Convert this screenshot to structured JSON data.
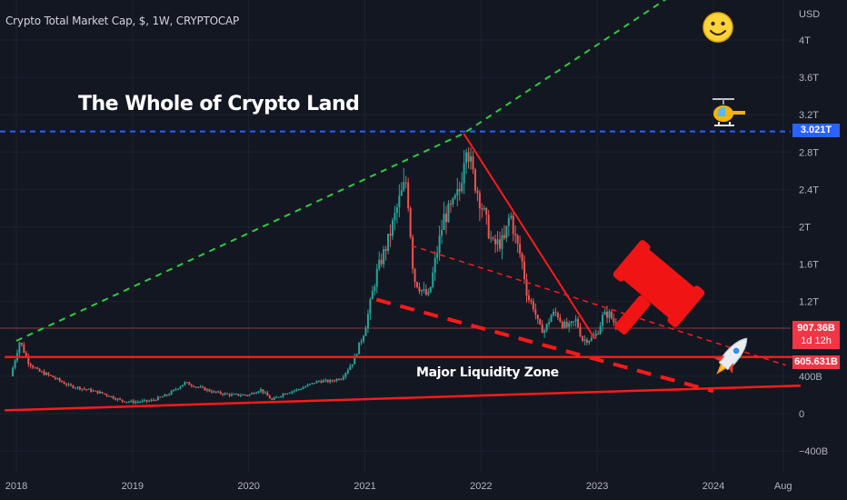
{
  "header": {
    "title": "Crypto Total Market Cap, $, 1W, CRYPTOCAP"
  },
  "annotations": {
    "headline": "The Whole of Crypto Land",
    "zone_label": "Major Liquidity Zone"
  },
  "axis": {
    "currency": "USD",
    "price_ticks": [
      {
        "v": 4000,
        "label": "4T"
      },
      {
        "v": 3600,
        "label": "3.6T"
      },
      {
        "v": 3200,
        "label": "3.2T"
      },
      {
        "v": 2800,
        "label": "2.8T"
      },
      {
        "v": 2400,
        "label": "2.4T"
      },
      {
        "v": 2000,
        "label": "2T"
      },
      {
        "v": 1600,
        "label": "1.6T"
      },
      {
        "v": 1200,
        "label": "1.2T"
      },
      {
        "v": 400,
        "label": "400B"
      },
      {
        "v": 0,
        "label": "0"
      },
      {
        "v": -400,
        "label": "−400B"
      }
    ],
    "time_ticks": [
      {
        "t": 2018.0,
        "label": "2018"
      },
      {
        "t": 2019.0,
        "label": "2019"
      },
      {
        "t": 2020.0,
        "label": "2020"
      },
      {
        "t": 2021.0,
        "label": "2021"
      },
      {
        "t": 2022.0,
        "label": "2022"
      },
      {
        "t": 2023.0,
        "label": "2023"
      },
      {
        "t": 2024.0,
        "label": "2024"
      },
      {
        "t": 2024.6,
        "label": "Aug"
      }
    ]
  },
  "badges": {
    "resistance": "3.021T",
    "last_price": "907.36B",
    "countdown": "1d 12h",
    "support": "605.631B"
  },
  "colors": {
    "background": "#131722",
    "up": "#26a69a",
    "down": "#ef5350",
    "resistance_line": "#2962ff",
    "green_trend": "#2ecc40",
    "red_lines": "#ff1a1a"
  },
  "icons": [
    "smiley-face-icon",
    "helicopter-icon",
    "gavel-icon",
    "rocket-icon"
  ],
  "chart_data": {
    "type": "candlestick",
    "title": "Crypto Total Market Cap, $, 1W, CRYPTOCAP",
    "ylabel": "USD",
    "xlim": [
      2017.9,
      2024.75
    ],
    "ylim": [
      -520,
      4250
    ],
    "resistance_level": 3021,
    "support_level": 605.631,
    "last_price": 907.36,
    "price_path": [
      [
        2017.95,
        400
      ],
      [
        2018.03,
        780
      ],
      [
        2018.1,
        560
      ],
      [
        2018.18,
        460
      ],
      [
        2018.3,
        400
      ],
      [
        2018.45,
        300
      ],
      [
        2018.6,
        260
      ],
      [
        2018.75,
        215
      ],
      [
        2018.9,
        140
      ],
      [
        2019.0,
        125
      ],
      [
        2019.15,
        135
      ],
      [
        2019.3,
        200
      ],
      [
        2019.45,
        330
      ],
      [
        2019.55,
        290
      ],
      [
        2019.7,
        230
      ],
      [
        2019.85,
        200
      ],
      [
        2020.0,
        200
      ],
      [
        2020.1,
        260
      ],
      [
        2020.2,
        145
      ],
      [
        2020.3,
        215
      ],
      [
        2020.45,
        270
      ],
      [
        2020.6,
        350
      ],
      [
        2020.7,
        345
      ],
      [
        2020.8,
        385
      ],
      [
        2020.9,
        560
      ],
      [
        2021.0,
        900
      ],
      [
        2021.1,
        1500
      ],
      [
        2021.2,
        1850
      ],
      [
        2021.3,
        2300
      ],
      [
        2021.36,
        2500
      ],
      [
        2021.42,
        1450
      ],
      [
        2021.5,
        1300
      ],
      [
        2021.55,
        1250
      ],
      [
        2021.6,
        1600
      ],
      [
        2021.68,
        2100
      ],
      [
        2021.75,
        2200
      ],
      [
        2021.82,
        2400
      ],
      [
        2021.87,
        2950
      ],
      [
        2021.92,
        2600
      ],
      [
        2022.0,
        2250
      ],
      [
        2022.1,
        1800
      ],
      [
        2022.2,
        1850
      ],
      [
        2022.25,
        2150
      ],
      [
        2022.3,
        1850
      ],
      [
        2022.35,
        1650
      ],
      [
        2022.4,
        1250
      ],
      [
        2022.45,
        1150
      ],
      [
        2022.5,
        920
      ],
      [
        2022.55,
        890
      ],
      [
        2022.6,
        1050
      ],
      [
        2022.65,
        1080
      ],
      [
        2022.7,
        960
      ],
      [
        2022.75,
        920
      ],
      [
        2022.82,
        1000
      ],
      [
        2022.87,
        790
      ],
      [
        2022.95,
        800
      ],
      [
        2023.0,
        860
      ],
      [
        2023.05,
        1050
      ],
      [
        2023.1,
        1070
      ],
      [
        2023.18,
        907
      ]
    ],
    "drawings": {
      "green_trend": [
        [
          2018.0,
          780
        ],
        [
          2021.85,
          3000
        ],
        [
          2025.0,
          5600
        ]
      ],
      "resistance_downtrend": [
        [
          2021.85,
          3000
        ],
        [
          2022.98,
          800
        ]
      ],
      "dashed_upper_channel": [
        [
          2021.4,
          1800
        ],
        [
          2024.62,
          520
        ]
      ],
      "dashed_lower_channel": [
        [
          2021.1,
          1220
        ],
        [
          2024.0,
          240
        ]
      ],
      "support_line": [
        [
          2017.9,
          605.631
        ],
        [
          2024.75,
          605.631
        ]
      ],
      "rising_floor": [
        [
          2017.9,
          35
        ],
        [
          2024.75,
          300
        ]
      ]
    }
  }
}
